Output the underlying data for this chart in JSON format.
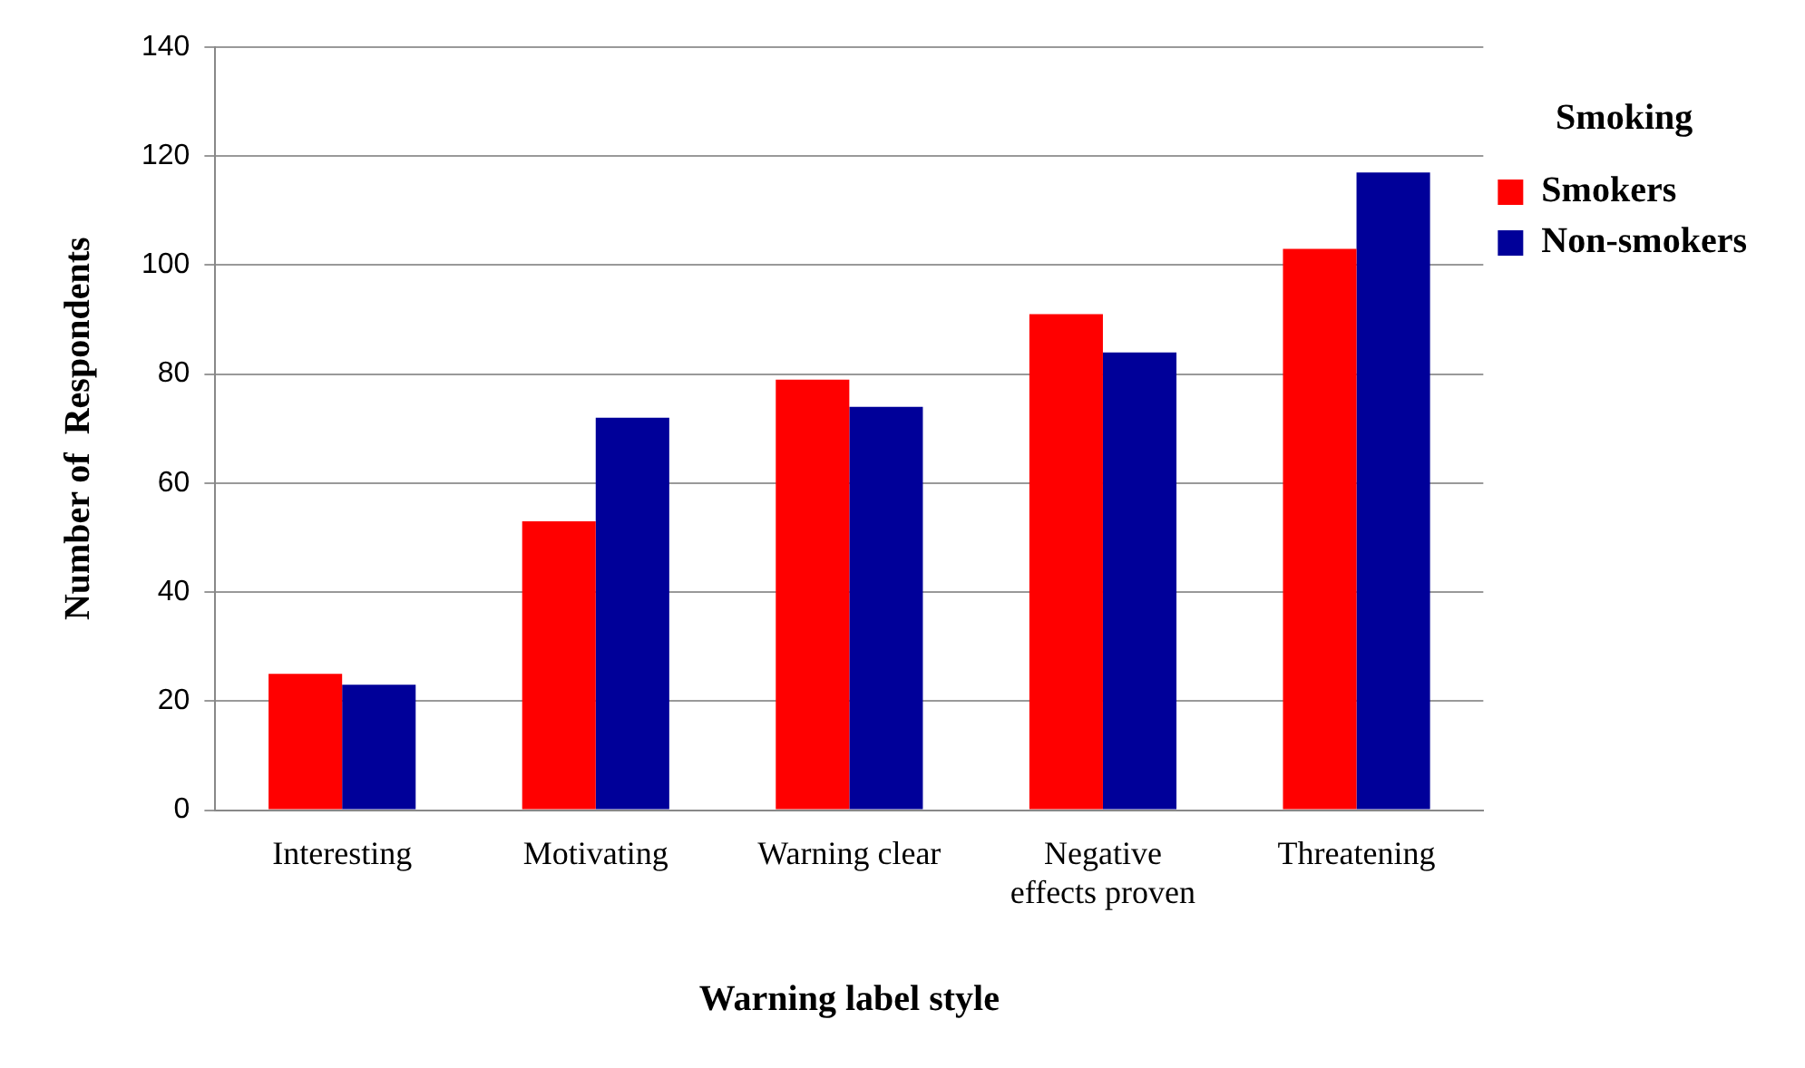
{
  "chart_data": {
    "type": "bar",
    "xlabel": "Warning label style",
    "ylabel": "Number of  Respondents",
    "legend_title": "Smoking",
    "categories": [
      "Interesting",
      "Motivating",
      "Warning clear",
      "Negative effects proven",
      "Threatening"
    ],
    "series": [
      {
        "name": "Smokers",
        "color": "#ff0000",
        "values": [
          25,
          53,
          79,
          91,
          103
        ]
      },
      {
        "name": "Non-smokers",
        "color": "#000099",
        "values": [
          23,
          72,
          74,
          84,
          117
        ]
      }
    ],
    "ylim": [
      0,
      140
    ],
    "yticks": [
      0,
      20,
      40,
      60,
      80,
      100,
      120,
      140
    ],
    "grid": "y",
    "legend": "right"
  }
}
